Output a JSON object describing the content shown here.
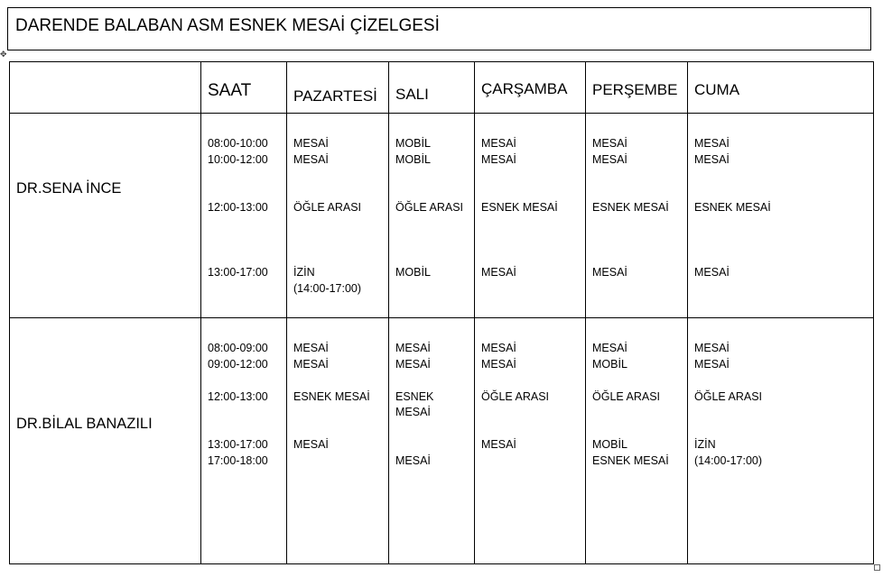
{
  "title": "DARENDE BALABAN ASM ESNEK MESAİ ÇİZELGESİ",
  "headers": [
    "SAAT",
    "PAZARTESİ",
    "SALI",
    "ÇARŞAMBA",
    "PERŞEMBE",
    "CUMA"
  ],
  "rows": [
    {
      "name": "DR.SENA İNCE",
      "cells": [
        [
          "08:00-10:00",
          "10:00-12:00",
          "12:00-13:00",
          "13:00-17:00",
          ""
        ],
        [
          "MESAİ",
          "MESAİ",
          "ÖĞLE ARASI",
          "İZİN",
          "(14:00-17:00)"
        ],
        [
          "MOBİL",
          "MOBİL",
          "ÖĞLE ARASI",
          "MOBİL",
          ""
        ],
        [
          "MESAİ",
          "MESAİ",
          "ESNEK MESAİ",
          "MESAİ",
          ""
        ],
        [
          "MESAİ",
          "MESAİ",
          "ESNEK MESAİ",
          "MESAİ",
          ""
        ],
        [
          "MESAİ",
          "MESAİ",
          "ESNEK MESAİ",
          "MESAİ",
          ""
        ]
      ]
    },
    {
      "name": "DR.BİLAL BANAZILI",
      "cells": [
        [
          "08:00-09:00",
          "09:00-12:00",
          "12:00-13:00",
          "",
          "13:00-17:00",
          "17:00-18:00"
        ],
        [
          "MESAİ",
          "MESAİ",
          "ESNEK MESAİ",
          "",
          "MESAİ",
          ""
        ],
        [
          "MESAİ",
          "MESAİ",
          "ESNEK",
          "MESAİ",
          "",
          "MESAİ"
        ],
        [
          "MESAİ",
          "MESAİ",
          "ÖĞLE ARASI",
          "",
          "MESAİ",
          ""
        ],
        [
          "MESAİ",
          "MOBİL",
          "ÖĞLE ARASI",
          "",
          "MOBİL",
          "ESNEK MESAİ"
        ],
        [
          "MESAİ",
          "MESAİ",
          "ÖĞLE ARASI",
          "",
          "İZİN",
          "(14:00-17:00)"
        ]
      ]
    }
  ]
}
